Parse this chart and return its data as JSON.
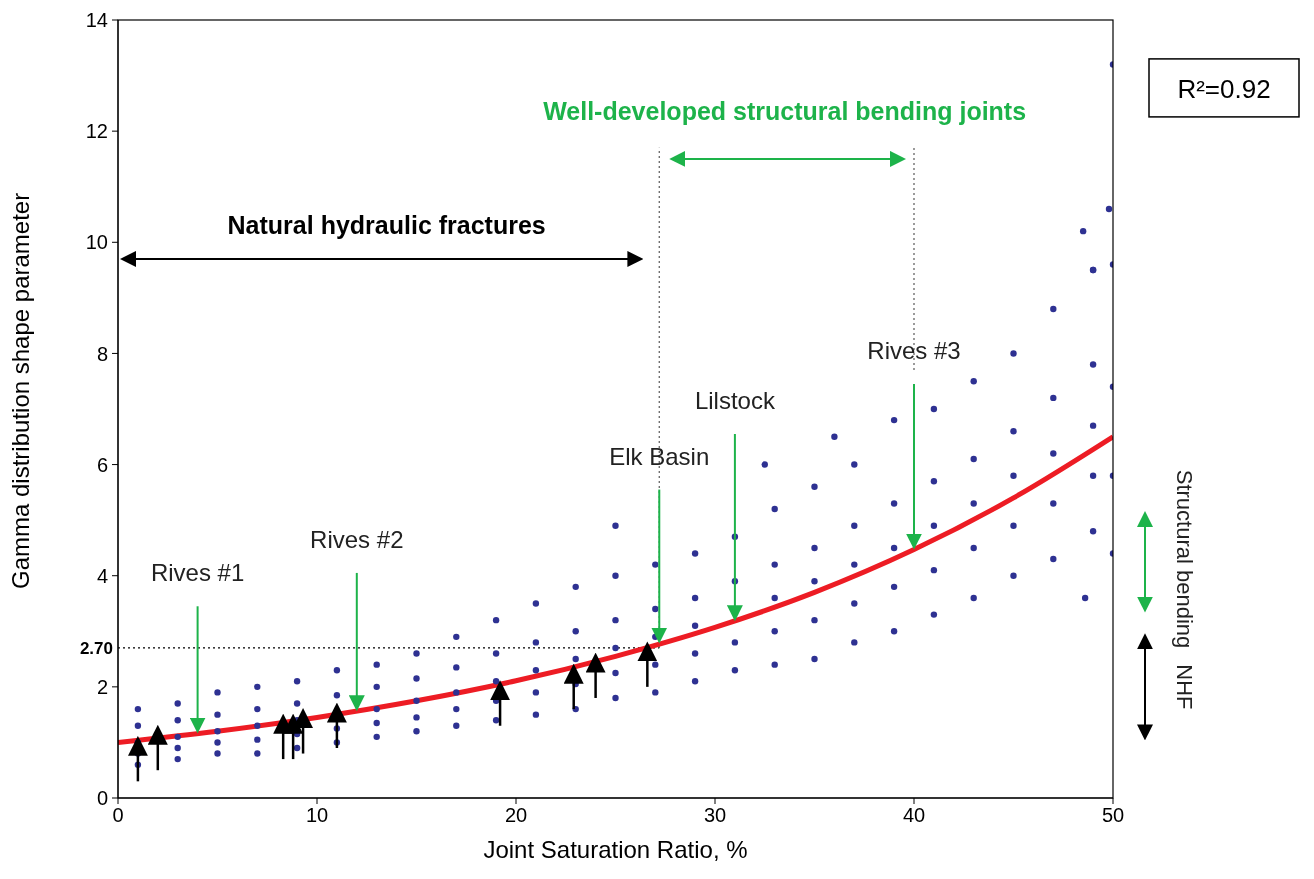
{
  "chart_data": {
    "type": "scatter",
    "xlabel": "Joint Saturation Ratio, %",
    "ylabel": "Gamma distribution shape parameter",
    "xlim": [
      0,
      50
    ],
    "ylim": [
      0,
      14
    ],
    "xticks": [
      0,
      10,
      20,
      30,
      40,
      50
    ],
    "yticks": [
      0,
      2,
      4,
      6,
      8,
      10,
      12,
      14
    ],
    "grid": false,
    "legend": false,
    "series": [
      {
        "color": "#2e3192",
        "marker": "circle",
        "x": [
          1,
          1,
          1,
          1,
          1,
          3,
          3,
          3,
          3,
          3,
          5,
          5,
          5,
          5,
          5,
          7,
          7,
          7,
          7,
          7,
          9,
          9,
          9,
          9,
          9,
          11,
          11,
          11,
          11,
          13,
          13,
          13,
          13,
          13,
          15,
          15,
          15,
          15,
          15,
          17,
          17,
          17,
          17,
          17,
          19,
          19,
          19,
          19,
          19,
          21,
          21,
          21,
          21,
          21,
          23,
          23,
          23,
          23,
          23,
          25,
          25,
          25,
          25,
          25,
          27,
          27,
          27,
          27,
          27,
          29,
          29,
          29,
          29,
          29,
          31,
          31,
          31,
          31,
          33,
          33,
          33,
          33,
          33,
          35,
          35,
          35,
          35,
          35,
          37,
          37,
          37,
          37,
          37,
          39,
          39,
          39,
          39,
          39,
          41,
          41,
          41,
          41,
          41,
          43,
          43,
          43,
          43,
          43,
          45,
          45,
          45,
          45,
          45,
          47,
          47,
          47,
          47,
          47,
          49,
          49,
          49,
          49,
          49,
          50,
          50,
          50,
          50,
          50,
          49.8,
          48.5,
          49,
          25,
          36,
          32.5,
          48.6
        ],
        "values": [
          1.6,
          1.3,
          1.0,
          0.8,
          0.6,
          1.7,
          1.4,
          1.1,
          0.9,
          0.7,
          1.9,
          1.5,
          1.2,
          1.0,
          0.8,
          2.0,
          1.6,
          1.3,
          1.05,
          0.8,
          2.1,
          1.7,
          1.4,
          1.15,
          0.9,
          2.3,
          1.85,
          1.25,
          1.0,
          2.4,
          2.0,
          1.6,
          1.35,
          1.1,
          2.6,
          2.15,
          1.75,
          1.45,
          1.2,
          2.9,
          2.35,
          1.9,
          1.6,
          1.3,
          3.2,
          2.6,
          2.1,
          1.75,
          1.4,
          3.5,
          2.8,
          2.3,
          1.9,
          1.5,
          3.8,
          3.0,
          2.5,
          2.05,
          1.6,
          4.0,
          3.2,
          2.7,
          2.25,
          1.8,
          4.2,
          3.4,
          2.9,
          2.4,
          1.9,
          4.4,
          3.6,
          3.1,
          2.6,
          2.1,
          4.7,
          3.9,
          2.8,
          2.3,
          5.2,
          4.2,
          3.6,
          3.0,
          2.4,
          5.6,
          4.5,
          3.9,
          3.2,
          2.5,
          6.0,
          4.9,
          4.2,
          3.5,
          2.8,
          6.8,
          5.3,
          4.5,
          3.8,
          3.0,
          7.0,
          5.7,
          4.9,
          4.1,
          3.3,
          7.5,
          6.1,
          5.3,
          4.5,
          3.6,
          8.0,
          6.6,
          5.8,
          4.9,
          4.0,
          8.8,
          7.2,
          6.2,
          5.3,
          4.3,
          9.5,
          7.8,
          6.7,
          5.8,
          4.8,
          9.6,
          7.4,
          5.8,
          4.4,
          13.2,
          10.6,
          10.2,
          9.5,
          4.9,
          6.5,
          6.0,
          3.6
        ]
      },
      {
        "type": "line",
        "color": "#ed1c24",
        "marker": "none",
        "line_style": "solid",
        "x": [
          0,
          5,
          10,
          15,
          20,
          25,
          30,
          35,
          40,
          45,
          50
        ],
        "values": [
          1.0,
          1.2,
          1.45,
          1.75,
          2.11,
          2.55,
          3.07,
          3.7,
          4.47,
          5.4,
          6.5
        ]
      }
    ],
    "ref_lines": [
      {
        "axis": "y",
        "value": 2.7,
        "label": "2.70",
        "color": "#000000",
        "line_style": "dotted"
      },
      {
        "axis": "x",
        "value": 27.2,
        "color": "#666666",
        "line_style": "dotted"
      },
      {
        "axis": "x",
        "value": 40,
        "color": "#666666",
        "line_style": "dotted"
      }
    ],
    "annotations": [
      {
        "text": "Rives #1",
        "x": 4,
        "y": 1.16
      },
      {
        "text": "Rives #2",
        "x": 12,
        "y": 1.56
      },
      {
        "text": "Elk Basin",
        "x": 27.2,
        "y": 2.78
      },
      {
        "text": "Lilstock",
        "x": 31,
        "y": 3.18
      },
      {
        "text": "Rives #3",
        "x": 40,
        "y": 4.47
      },
      "Natural hydraulic fractures",
      "Well-developed structural bending joints",
      "R²=0.92",
      "Structural bending",
      "NHF"
    ]
  }
}
